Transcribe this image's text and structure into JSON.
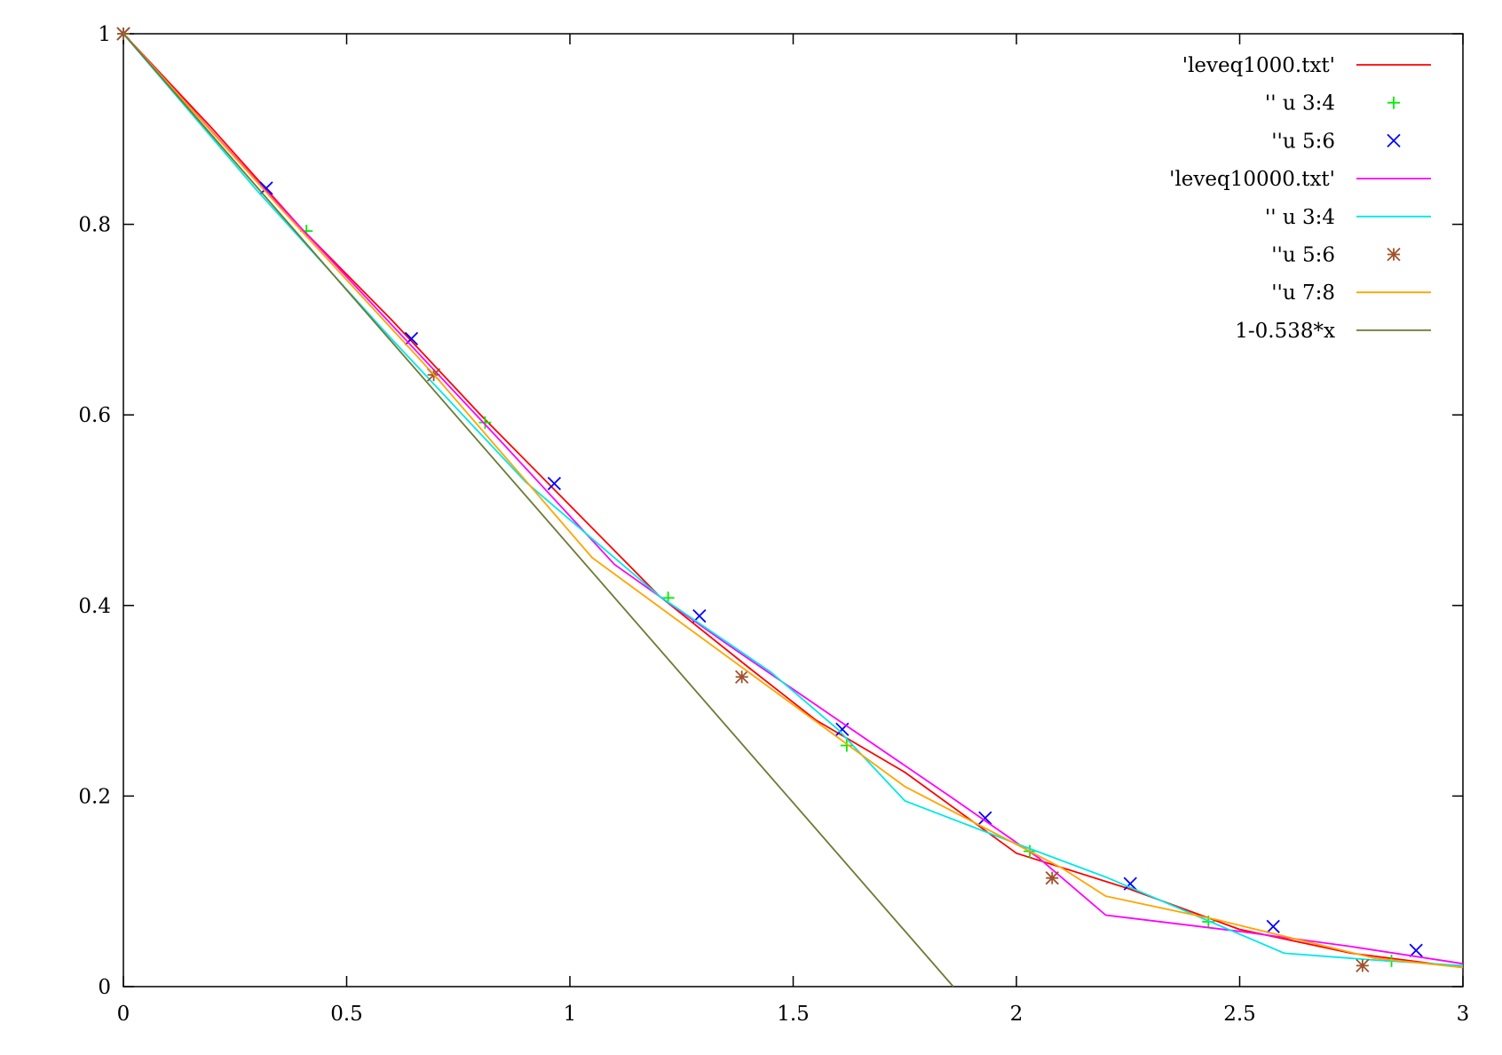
{
  "chart_data": {
    "type": "line",
    "title": "",
    "xlabel": "",
    "ylabel": "",
    "xlim": [
      0,
      3
    ],
    "ylim": [
      0,
      1
    ],
    "grid": false,
    "legend_position": "top-right",
    "xticks": [
      {
        "value": 0,
        "label": "0"
      },
      {
        "value": 0.5,
        "label": "0.5"
      },
      {
        "value": 1,
        "label": "1"
      },
      {
        "value": 1.5,
        "label": "1.5"
      },
      {
        "value": 2,
        "label": "2"
      },
      {
        "value": 2.5,
        "label": "2.5"
      },
      {
        "value": 3,
        "label": "3"
      }
    ],
    "yticks": [
      {
        "value": 0,
        "label": "0"
      },
      {
        "value": 0.2,
        "label": "0.2"
      },
      {
        "value": 0.4,
        "label": "0.4"
      },
      {
        "value": 0.6,
        "label": "0.6"
      },
      {
        "value": 0.8,
        "label": "0.8"
      },
      {
        "value": 1,
        "label": "1"
      }
    ],
    "series": [
      {
        "name": "'leveq1000.txt'",
        "style": "line",
        "color": "#ff0000",
        "points": [
          [
            0,
            1
          ],
          [
            0.2,
            0.9
          ],
          [
            0.4,
            0.795
          ],
          [
            0.6,
            0.7
          ],
          [
            0.8,
            0.6
          ],
          [
            1.0,
            0.505
          ],
          [
            1.2,
            0.41
          ],
          [
            1.4,
            0.335
          ],
          [
            1.55,
            0.28
          ],
          [
            1.75,
            0.225
          ],
          [
            2.0,
            0.14
          ],
          [
            2.25,
            0.103
          ],
          [
            2.5,
            0.06
          ],
          [
            2.75,
            0.035
          ],
          [
            3.0,
            0.02
          ]
        ]
      },
      {
        "name": "'' u 3:4",
        "style": "points-plus",
        "color": "#00ee00",
        "points": [
          [
            0,
            1
          ],
          [
            0.41,
            0.793
          ],
          [
            0.81,
            0.592
          ],
          [
            1.22,
            0.408
          ],
          [
            1.62,
            0.253
          ],
          [
            2.03,
            0.142
          ],
          [
            2.43,
            0.068
          ],
          [
            2.84,
            0.027
          ]
        ]
      },
      {
        "name": "''u 5:6",
        "style": "points-x",
        "color": "#0000ff",
        "points": [
          [
            0,
            1
          ],
          [
            0.32,
            0.838
          ],
          [
            0.645,
            0.68
          ],
          [
            0.965,
            0.528
          ],
          [
            1.29,
            0.389
          ],
          [
            1.61,
            0.27
          ],
          [
            1.93,
            0.177
          ],
          [
            2.255,
            0.108
          ],
          [
            2.575,
            0.063
          ],
          [
            2.895,
            0.038
          ]
        ]
      },
      {
        "name": "'leveq10000.txt'",
        "style": "line",
        "color": "#ff00ff",
        "points": [
          [
            0,
            1
          ],
          [
            0.3,
            0.845
          ],
          [
            0.6,
            0.695
          ],
          [
            0.85,
            0.57
          ],
          [
            1.1,
            0.443
          ],
          [
            1.35,
            0.36
          ],
          [
            1.6,
            0.28
          ],
          [
            1.85,
            0.2
          ],
          [
            2.05,
            0.135
          ],
          [
            2.2,
            0.075
          ],
          [
            2.5,
            0.058
          ],
          [
            2.75,
            0.042
          ],
          [
            3.0,
            0.024
          ]
        ]
      },
      {
        "name": "'' u 3:4",
        "style": "line",
        "color": "#00e8e8",
        "points": [
          [
            0,
            1
          ],
          [
            0.3,
            0.835
          ],
          [
            0.6,
            0.68
          ],
          [
            0.9,
            0.53
          ],
          [
            1.2,
            0.41
          ],
          [
            1.45,
            0.33
          ],
          [
            1.6,
            0.27
          ],
          [
            1.75,
            0.195
          ],
          [
            2.0,
            0.15
          ],
          [
            2.2,
            0.115
          ],
          [
            2.4,
            0.075
          ],
          [
            2.6,
            0.035
          ],
          [
            2.8,
            0.028
          ],
          [
            3.0,
            0.022
          ]
        ]
      },
      {
        "name": "''u 5:6",
        "style": "points-star",
        "color": "#a0522d",
        "points": [
          [
            0,
            1
          ],
          [
            0.695,
            0.642
          ],
          [
            1.385,
            0.325
          ],
          [
            2.08,
            0.114
          ],
          [
            2.775,
            0.022
          ]
        ]
      },
      {
        "name": "''u 7:8",
        "style": "line",
        "color": "#ffa500",
        "points": [
          [
            0,
            1
          ],
          [
            0.35,
            0.818
          ],
          [
            0.7,
            0.64
          ],
          [
            1.05,
            0.45
          ],
          [
            1.4,
            0.33
          ],
          [
            1.75,
            0.21
          ],
          [
            2.1,
            0.125
          ],
          [
            2.2,
            0.095
          ],
          [
            2.45,
            0.07
          ],
          [
            2.8,
            0.03
          ],
          [
            3.0,
            0.02
          ]
        ]
      },
      {
        "name": "1-0.538*x",
        "style": "line",
        "color": "#6b7b34",
        "points": [
          [
            0,
            1
          ],
          [
            1.8587,
            0
          ]
        ]
      }
    ]
  }
}
